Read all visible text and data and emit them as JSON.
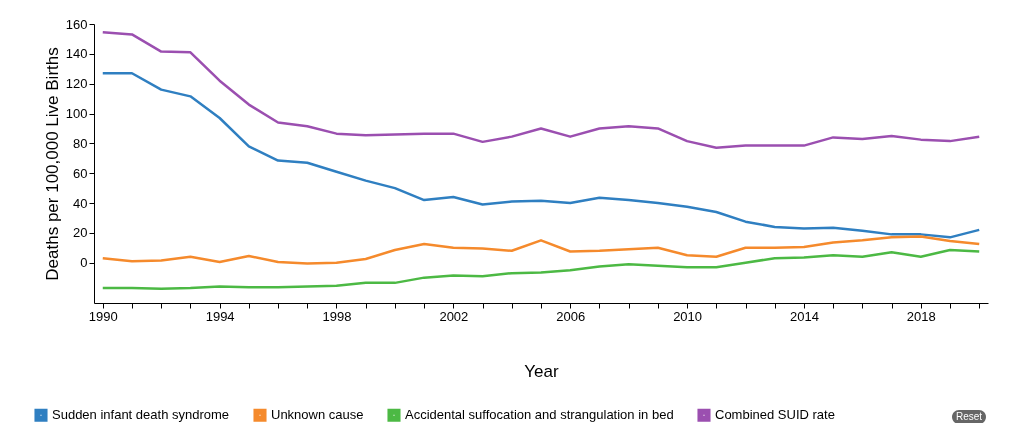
{
  "chart_data": {
    "type": "line",
    "xlabel": "Year",
    "ylabel": "Deaths per 100,000 Live Births",
    "x": [
      1990,
      1991,
      1992,
      1993,
      1994,
      1995,
      1996,
      1997,
      1998,
      1999,
      2000,
      2001,
      2002,
      2003,
      2004,
      2005,
      2006,
      2007,
      2008,
      2009,
      2010,
      2011,
      2012,
      2013,
      2014,
      2015,
      2016,
      2017,
      2018,
      2019,
      2020
    ],
    "series": [
      {
        "name": "Sudden infant death syndrome",
        "color": "#2f7fc1",
        "values": [
          127,
          127,
          116,
          111.5,
          97,
          78,
          68.5,
          67,
          61,
          55,
          50,
          42,
          44,
          39,
          41,
          41.5,
          40,
          43.5,
          42,
          40,
          37.5,
          34,
          27.5,
          24,
          23,
          23.5,
          21.5,
          19,
          19,
          17,
          22
        ]
      },
      {
        "name": "Unknown cause",
        "color": "#f58a2c",
        "values": [
          3,
          1,
          1.5,
          4,
          0.5,
          4.5,
          0.5,
          -0.5,
          0,
          2.5,
          8.5,
          12.5,
          10,
          9.5,
          8,
          15,
          7.5,
          8,
          9,
          10,
          5,
          4,
          10,
          10,
          10.5,
          13.5,
          15,
          17,
          17.5,
          14.5,
          12.5
        ]
      },
      {
        "name": "Accidental suffocation and strangulation in bed",
        "color": "#4cb944",
        "values": [
          -17,
          -17,
          -17.5,
          -17,
          -16,
          -16.5,
          -16.5,
          -16,
          -15.5,
          -13.5,
          -13.5,
          -10,
          -8.5,
          -9,
          -7,
          -6.5,
          -5,
          -2.5,
          -1,
          -2,
          -3,
          -3,
          0,
          3,
          3.5,
          5,
          4,
          7,
          4,
          8.5,
          7.5
        ]
      },
      {
        "name": "Combined SUID rate",
        "color": "#9b4fb0",
        "values": [
          154.5,
          153,
          141.5,
          141,
          122,
          106,
          94,
          91.5,
          86.5,
          85.5,
          86,
          86.5,
          86.5,
          81,
          84.5,
          90,
          84.5,
          90,
          91.5,
          90,
          81.5,
          77,
          78.5,
          78.5,
          78.5,
          84,
          83,
          85,
          82.5,
          81.5,
          84.5
        ]
      }
    ],
    "xlim": [
      1989.7,
      2020.3
    ],
    "xticks": [
      1990,
      {
        "value": 1991,
        "label": null
      },
      {
        "value": 1992,
        "label": null
      },
      {
        "value": 1993,
        "label": null
      },
      1994,
      {
        "value": 1995,
        "label": null
      },
      {
        "value": 1996,
        "label": null
      },
      {
        "value": 1997,
        "label": null
      },
      1998,
      {
        "value": 1999,
        "label": null
      },
      {
        "value": 2000,
        "label": null
      },
      {
        "value": 2001,
        "label": null
      },
      2002,
      {
        "value": 2003,
        "label": null
      },
      {
        "value": 2004,
        "label": null
      },
      {
        "value": 2005,
        "label": null
      },
      2006,
      {
        "value": 2007,
        "label": null
      },
      {
        "value": 2008,
        "label": null
      },
      {
        "value": 2009,
        "label": null
      },
      2010,
      {
        "value": 2011,
        "label": null
      },
      {
        "value": 2012,
        "label": null
      },
      {
        "value": 2013,
        "label": null
      },
      2014,
      {
        "value": 2015,
        "label": null
      },
      {
        "value": 2016,
        "label": null
      },
      {
        "value": 2017,
        "label": null
      },
      2018,
      {
        "value": 2019,
        "label": null
      },
      {
        "value": 2020,
        "label": null
      }
    ],
    "ylim": [
      -27,
      160
    ],
    "yticks": [
      0,
      20,
      40,
      60,
      80,
      100,
      120,
      140,
      160
    ],
    "legend": "bottom",
    "marker": "none",
    "line_style": "solid",
    "annotations": [
      "Reset"
    ]
  }
}
